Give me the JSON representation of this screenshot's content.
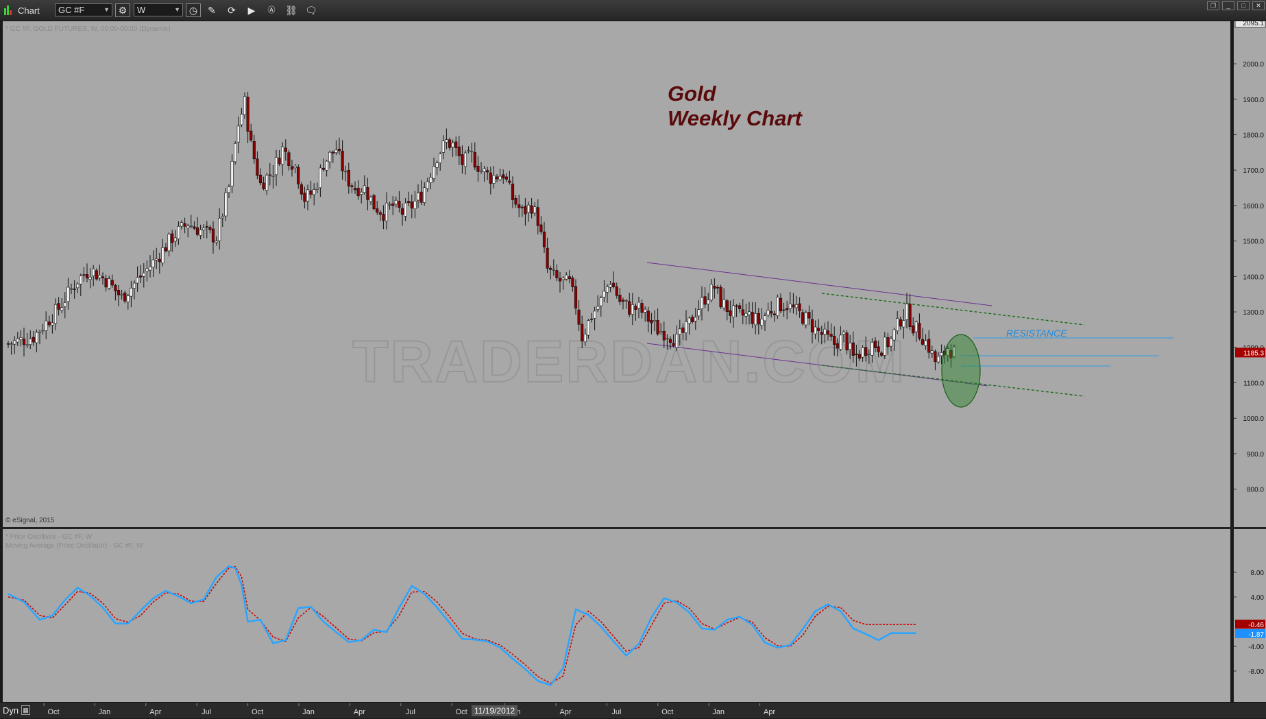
{
  "toolbar": {
    "title": "Chart",
    "symbol_value": "GC #F",
    "interval_value": "W",
    "icons": [
      "clock-settings-icon",
      "clock-icon",
      "pencil-icon",
      "cycle-icon",
      "play-icon",
      "aa-icon",
      "link-icon",
      "comment-icon"
    ]
  },
  "chart_data": [
    {
      "type": "candlestick",
      "pane": "price",
      "title": "Gold\nWeekly Chart",
      "title_line1": "Gold",
      "title_line2": "Weekly Chart",
      "header": "* GC #F, GOLD FUTURES, W, 00:00-00:00 (Dynamic)",
      "copyright": "© eSignal, 2015",
      "watermark": "TRADERDAN.COM",
      "annotation": "RESISTANCE",
      "last_price_label": "1185.3",
      "top_price_label": "2095.1",
      "y_ticks": [
        "2000.0",
        "1900.0",
        "1800.0",
        "1700.0",
        "1600.0",
        "1500.0",
        "1400.0",
        "1300.0",
        "1200.0",
        "1100.0",
        "1000.0",
        "900.0",
        "800.0"
      ],
      "ylim": [
        693,
        2120
      ],
      "x_tick_labels": [
        "Oct",
        "Jan",
        "Apr",
        "Jul",
        "Oct",
        "Jan",
        "Apr",
        "Jul",
        "Oct",
        "Jan",
        "Apr",
        "Jul",
        "Oct",
        "Jan",
        "Apr"
      ],
      "cursor_date_label": "11/19/2012",
      "approx_weekly_closes": [
        [
          0,
          1210
        ],
        [
          8,
          1230
        ],
        [
          16,
          1310
        ],
        [
          22,
          1390
        ],
        [
          26,
          1420
        ],
        [
          31,
          1390
        ],
        [
          36,
          1340
        ],
        [
          41,
          1390
        ],
        [
          47,
          1450
        ],
        [
          52,
          1510
        ],
        [
          57,
          1550
        ],
        [
          61,
          1530
        ],
        [
          66,
          1510
        ],
        [
          70,
          1650
        ],
        [
          73,
          1830
        ],
        [
          75,
          1890
        ],
        [
          77,
          1770
        ],
        [
          80,
          1660
        ],
        [
          84,
          1700
        ],
        [
          87,
          1760
        ],
        [
          91,
          1710
        ],
        [
          94,
          1620
        ],
        [
          97,
          1640
        ],
        [
          100,
          1720
        ],
        [
          104,
          1760
        ],
        [
          107,
          1680
        ],
        [
          110,
          1650
        ],
        [
          113,
          1650
        ],
        [
          116,
          1600
        ],
        [
          119,
          1580
        ],
        [
          122,
          1600
        ],
        [
          125,
          1580
        ],
        [
          128,
          1600
        ],
        [
          131,
          1630
        ],
        [
          136,
          1740
        ],
        [
          139,
          1780
        ],
        [
          141,
          1770
        ],
        [
          144,
          1720
        ],
        [
          147,
          1740
        ],
        [
          150,
          1700
        ],
        [
          153,
          1680
        ],
        [
          157,
          1690
        ],
        [
          160,
          1620
        ],
        [
          163,
          1580
        ],
        [
          166,
          1600
        ],
        [
          168,
          1560
        ],
        [
          171,
          1420
        ],
        [
          174,
          1390
        ],
        [
          178,
          1380
        ],
        [
          180,
          1320
        ],
        [
          182,
          1230
        ],
        [
          185,
          1290
        ],
        [
          188,
          1330
        ],
        [
          191,
          1390
        ],
        [
          194,
          1330
        ],
        [
          197,
          1310
        ],
        [
          200,
          1310
        ],
        [
          203,
          1280
        ],
        [
          206,
          1250
        ],
        [
          209,
          1240
        ],
        [
          212,
          1220
        ],
        [
          215,
          1250
        ],
        [
          218,
          1300
        ],
        [
          221,
          1340
        ],
        [
          224,
          1370
        ],
        [
          226,
          1330
        ],
        [
          229,
          1300
        ],
        [
          232,
          1290
        ],
        [
          235,
          1290
        ],
        [
          238,
          1270
        ],
        [
          241,
          1300
        ],
        [
          244,
          1320
        ],
        [
          247,
          1320
        ],
        [
          250,
          1300
        ],
        [
          253,
          1280
        ],
        [
          256,
          1250
        ],
        [
          259,
          1230
        ],
        [
          262,
          1210
        ],
        [
          265,
          1230
        ],
        [
          268,
          1170
        ],
        [
          271,
          1190
        ],
        [
          274,
          1210
        ],
        [
          277,
          1200
        ],
        [
          280,
          1220
        ],
        [
          283,
          1280
        ],
        [
          285,
          1300
        ],
        [
          287,
          1260
        ],
        [
          290,
          1230
        ],
        [
          292,
          1200
        ],
        [
          294,
          1160
        ],
        [
          296,
          1170
        ],
        [
          298,
          1200
        ],
        [
          300,
          1185
        ]
      ],
      "approx_weekly_highs_lows": {
        "max_high": 1920,
        "min_low": 1142
      }
    },
    {
      "type": "line",
      "pane": "oscillator",
      "header_line1": "* Price Oscillator - GC #F, W",
      "header_line2": "Moving Average (Price Oscillator) - GC #F, W",
      "y_ticks": [
        "8.00",
        "4.00",
        "-4.00",
        "-8.00"
      ],
      "ylim": [
        -11,
        11
      ],
      "series": [
        {
          "color": "#2aa5ff",
          "last_label": "-1.87",
          "x": [
            0,
            5,
            10,
            14,
            18,
            22,
            26,
            30,
            34,
            38,
            42,
            46,
            50,
            54,
            58,
            62,
            66,
            70,
            72,
            74,
            76,
            80,
            84,
            88,
            92,
            96,
            100,
            104,
            108,
            112,
            116,
            120,
            124,
            128,
            132,
            136,
            140,
            144,
            148,
            152,
            156,
            160,
            164,
            168,
            172,
            176,
            180,
            184,
            188,
            192,
            196,
            200,
            204,
            208,
            212,
            216,
            220,
            224,
            228,
            232,
            236,
            240,
            244,
            248,
            252,
            256,
            260,
            264,
            268,
            272,
            276,
            280,
            284,
            288,
            292,
            296,
            300
          ],
          "values": [
            4.5,
            3.2,
            0.3,
            1.0,
            3.5,
            5.5,
            4.2,
            2.3,
            -0.3,
            -0.3,
            1.8,
            3.8,
            5.0,
            4.1,
            3.0,
            3.6,
            7.2,
            9.0,
            8.7,
            6.0,
            0,
            0.3,
            -3.5,
            -3.0,
            2.2,
            2.4,
            0,
            -1.7,
            -3.3,
            -3.0,
            -1.3,
            -1.7,
            2.3,
            5.8,
            4.5,
            2.3,
            -0.2,
            -2.8,
            -2.9,
            -3.2,
            -4.2,
            -6.0,
            -7.7,
            -9.6,
            -10.3,
            -7.5,
            2.0,
            1.1,
            -0.8,
            -3.2,
            -5.5,
            -3.6,
            0.7,
            3.8,
            3.1,
            1.5,
            -1.1,
            -1.3,
            0.3,
            0.8,
            -0.5,
            -3.4,
            -4.2,
            -3.8,
            -1.2,
            1.7,
            2.8,
            1.7,
            -1.1,
            -2.0,
            -3.0,
            -1.87,
            -1.87,
            -1.87,
            -1.87,
            -1.87,
            -1.87
          ]
        },
        {
          "color": "#cc0000",
          "last_label": "-0.46",
          "x": [
            0,
            5,
            10,
            14,
            18,
            22,
            26,
            30,
            34,
            38,
            42,
            46,
            50,
            54,
            58,
            62,
            66,
            70,
            72,
            74,
            76,
            80,
            84,
            88,
            92,
            96,
            100,
            104,
            108,
            112,
            116,
            120,
            124,
            128,
            132,
            136,
            140,
            144,
            148,
            152,
            156,
            160,
            164,
            168,
            172,
            176,
            180,
            184,
            188,
            192,
            196,
            200,
            204,
            208,
            212,
            216,
            220,
            224,
            228,
            232,
            236,
            240,
            244,
            248,
            252,
            256,
            260,
            264,
            268,
            272,
            276,
            280,
            284,
            288,
            292,
            296,
            300
          ],
          "values": [
            4.0,
            3.5,
            1.0,
            0.6,
            2.7,
            4.9,
            4.6,
            3.0,
            0.5,
            -0.1,
            1.0,
            3.2,
            4.7,
            4.5,
            3.3,
            3.3,
            6.2,
            8.7,
            8.9,
            7.3,
            2.0,
            0.2,
            -2.5,
            -3.2,
            0.6,
            2.3,
            0.8,
            -1.0,
            -2.8,
            -3.1,
            -1.8,
            -1.5,
            1.0,
            4.8,
            4.9,
            3.2,
            0.8,
            -1.9,
            -2.8,
            -3.0,
            -3.8,
            -5.3,
            -7.0,
            -8.9,
            -10.0,
            -8.8,
            -0.5,
            1.7,
            0.0,
            -2.4,
            -4.8,
            -4.2,
            -0.6,
            3.0,
            3.4,
            2.2,
            -0.3,
            -1.2,
            -0.2,
            0.7,
            -0.1,
            -2.6,
            -3.9,
            -4.0,
            -2.2,
            0.9,
            2.5,
            2.3,
            0.2,
            -0.46,
            -0.46,
            -0.46,
            -0.46,
            -0.46,
            -0.46,
            -0.46,
            -0.46
          ]
        }
      ]
    }
  ]
}
